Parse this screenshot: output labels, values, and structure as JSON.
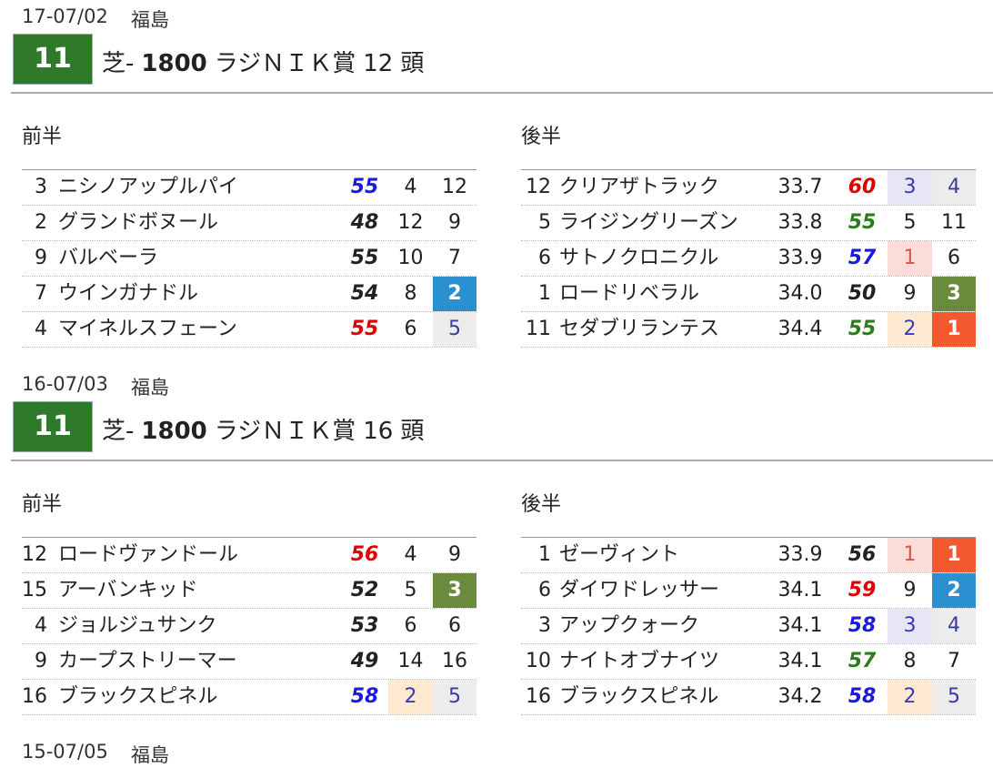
{
  "races": [
    {
      "date": "17-07/02",
      "venue": "福島",
      "number": "11",
      "surface": "芝-",
      "distance": "1800",
      "name": "ラジＮＩＫ賞",
      "heads": "12",
      "heads_unit": "頭",
      "front": {
        "label": "前半",
        "rows": [
          {
            "no": 3,
            "name": "ニシノアップルパイ",
            "score": 55,
            "score_color": "#1a1adf",
            "a": 4,
            "b": 12
          },
          {
            "no": 2,
            "name": "グランドボヌール",
            "score": 48,
            "score_color": "#222222",
            "a": 12,
            "b": 9
          },
          {
            "no": 9,
            "name": "バルベーラ",
            "score": 55,
            "score_color": "#222222",
            "a": 10,
            "b": 7
          },
          {
            "no": 7,
            "name": "ウインガナドル",
            "score": 54,
            "score_color": "#222222",
            "a": 8,
            "b": 2
          },
          {
            "no": 4,
            "name": "マイネルスフェーン",
            "score": 55,
            "score_color": "#e00000",
            "a": 6,
            "b": 5
          }
        ]
      },
      "back": {
        "label": "後半",
        "rows": [
          {
            "no": 12,
            "name": "クリアザトラック",
            "time": "33.7",
            "score": 60,
            "score_color": "#e00000",
            "a": 3,
            "b": 4
          },
          {
            "no": 5,
            "name": "ライジングリーズン",
            "time": "33.8",
            "score": 55,
            "score_color": "#2a7d1a",
            "a": 5,
            "b": 11
          },
          {
            "no": 6,
            "name": "サトノクロニクル",
            "time": "33.9",
            "score": 57,
            "score_color": "#1a1adf",
            "a": 1,
            "b": 6
          },
          {
            "no": 1,
            "name": "ロードリベラル",
            "time": "34.0",
            "score": 50,
            "score_color": "#222222",
            "a": 9,
            "b": 3
          },
          {
            "no": 11,
            "name": "セダブリランテス",
            "time": "34.4",
            "score": 55,
            "score_color": "#2a7d1a",
            "a": 2,
            "b": 1
          }
        ]
      }
    },
    {
      "date": "16-07/03",
      "venue": "福島",
      "number": "11",
      "surface": "芝-",
      "distance": "1800",
      "name": "ラジＮＩＫ賞",
      "heads": "16",
      "heads_unit": "頭",
      "front": {
        "label": "前半",
        "rows": [
          {
            "no": 12,
            "name": "ロードヴァンドール",
            "score": 56,
            "score_color": "#e00000",
            "a": 4,
            "b": 9
          },
          {
            "no": 15,
            "name": "アーバンキッド",
            "score": 52,
            "score_color": "#222222",
            "a": 5,
            "b": 3
          },
          {
            "no": 4,
            "name": "ジョルジュサンク",
            "score": 53,
            "score_color": "#222222",
            "a": 6,
            "b": 6
          },
          {
            "no": 9,
            "name": "カープストリーマー",
            "score": 49,
            "score_color": "#222222",
            "a": 14,
            "b": 16
          },
          {
            "no": 16,
            "name": "ブラックスピネル",
            "score": 58,
            "score_color": "#1a1adf",
            "a": 2,
            "b": 5
          }
        ]
      },
      "back": {
        "label": "後半",
        "rows": [
          {
            "no": 1,
            "name": "ゼーヴィント",
            "time": "33.9",
            "score": 56,
            "score_color": "#222222",
            "a": 1,
            "b": 1
          },
          {
            "no": 6,
            "name": "ダイワドレッサー",
            "time": "34.1",
            "score": 59,
            "score_color": "#e00000",
            "a": 9,
            "b": 2
          },
          {
            "no": 3,
            "name": "アップクォーク",
            "time": "34.1",
            "score": 58,
            "score_color": "#1a1adf",
            "a": 3,
            "b": 4
          },
          {
            "no": 10,
            "name": "ナイトオブナイツ",
            "time": "34.1",
            "score": 57,
            "score_color": "#2a7d1a",
            "a": 8,
            "b": 7
          },
          {
            "no": 16,
            "name": "ブラックスピネル",
            "time": "34.2",
            "score": 58,
            "score_color": "#1a1adf",
            "a": 2,
            "b": 5
          }
        ]
      }
    },
    {
      "date": "15-07/05",
      "venue": "福島"
    }
  ]
}
